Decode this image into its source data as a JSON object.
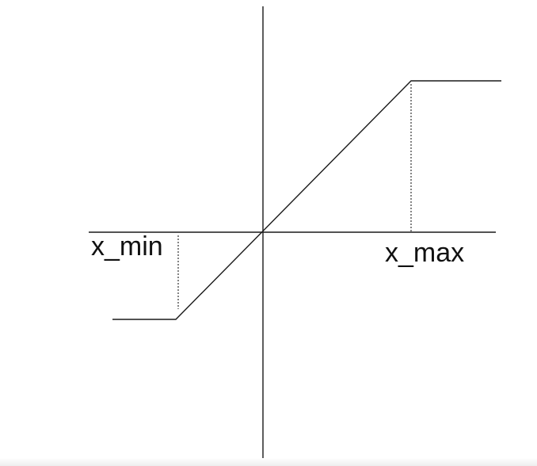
{
  "diagram": {
    "type": "saturation function",
    "labels": {
      "x_min": "x_min",
      "x_max": "x_max"
    }
  }
}
